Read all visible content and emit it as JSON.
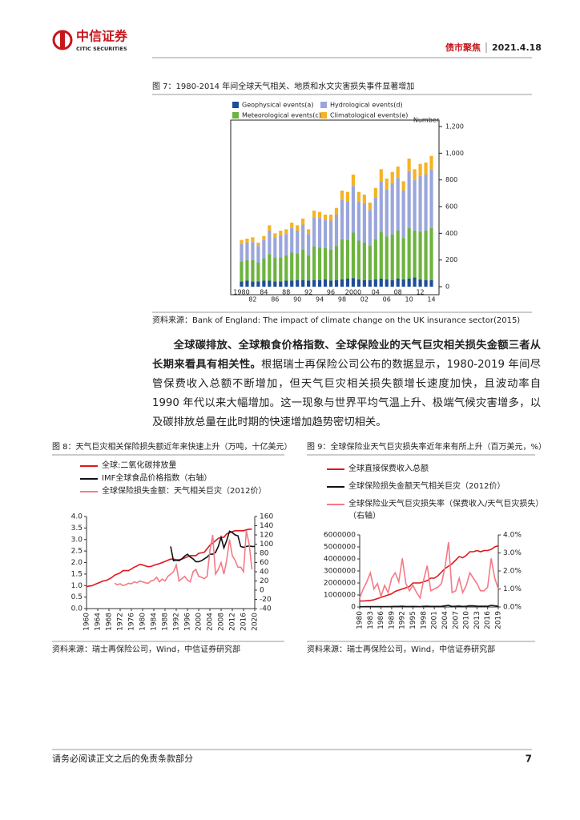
{
  "header": {
    "company": "中信证券",
    "company_en": "CITIC SECURITIES",
    "section": "债市聚焦",
    "date": "2021.4.18"
  },
  "body": {
    "lead": "全球碳排放、全球粮食价格指数、全球保险业的天气巨灾相关损失金额三者从长期来看具有相关性。",
    "text": "根据瑞士再保险公司公布的数据显示，1980-2019 年间尽管保费收入总额不断增加，但天气巨灾相关损失额增长速度加快，且波动率自 1990 年代以来大幅增加。这一现象与世界平均气温上升、极端气候灾害增多，以及碳排放总量在此时期的快速增加趋势密切相关。"
  },
  "footer": {
    "disclaimer": "请务必阅读正文之后的免责条款部分",
    "page": "7"
  },
  "chart_data": [
    {
      "type": "bar",
      "stacked": true,
      "title": "图 7：1980-2014 年间全球天气相关、地质和水文灾害损失事件显著增加",
      "source": "资料来源：Bank of England: The impact of climate change on the UK insurance sector(2015)",
      "ylabel": "Number",
      "categories": [
        "1980",
        null,
        "82",
        null,
        "84",
        null,
        "86",
        null,
        "88",
        null,
        "90",
        null,
        "92",
        null,
        "94",
        null,
        "96",
        null,
        "98",
        null,
        "2000",
        null,
        "02",
        null,
        "04",
        null,
        "06",
        null,
        "08",
        null,
        "10",
        null,
        "12",
        null,
        "14"
      ],
      "ylim": [
        0,
        1200
      ],
      "yticks": [
        0,
        200,
        400,
        600,
        800,
        {
          "value": 1000,
          "label": "1,000"
        },
        {
          "value": 1200,
          "label": "1,200"
        }
      ],
      "series": [
        {
          "name": "Geophysical events(a)",
          "color": "#1f4e96",
          "values": [
            40,
            45,
            40,
            40,
            45,
            45,
            40,
            40,
            45,
            45,
            50,
            50,
            45,
            50,
            50,
            55,
            45,
            50,
            55,
            60,
            65,
            55,
            50,
            50,
            55,
            60,
            55,
            50,
            60,
            55,
            60,
            70,
            55,
            50,
            50
          ]
        },
        {
          "name": "Meteorological events(c)",
          "color": "#6db33f",
          "values": [
            150,
            155,
            160,
            140,
            165,
            200,
            180,
            180,
            190,
            210,
            200,
            230,
            190,
            250,
            245,
            235,
            235,
            255,
            300,
            290,
            340,
            290,
            280,
            260,
            300,
            350,
            320,
            340,
            360,
            310,
            380,
            350,
            360,
            370,
            390
          ]
        },
        {
          "name": "Hydrological events(d)",
          "color": "#9aa6db",
          "values": [
            130,
            130,
            135,
            125,
            140,
            175,
            150,
            165,
            160,
            185,
            170,
            185,
            160,
            220,
            220,
            210,
            215,
            235,
            295,
            290,
            350,
            295,
            295,
            265,
            315,
            380,
            355,
            385,
            395,
            355,
            425,
            380,
            415,
            420,
            440
          ]
        },
        {
          "name": "Climatological events(e)",
          "color": "#f5b324",
          "values": [
            30,
            30,
            35,
            25,
            30,
            40,
            30,
            35,
            35,
            40,
            40,
            45,
            35,
            50,
            45,
            40,
            45,
            50,
            70,
            70,
            85,
            70,
            65,
            55,
            70,
            90,
            80,
            85,
            85,
            70,
            95,
            80,
            90,
            90,
            100
          ]
        }
      ]
    },
    {
      "type": "line",
      "title": "图 8：天气巨灾相关保险损失额近年来快速上升（万吨，十亿美元）",
      "source": "资料来源：瑞士再保险公司，Wind，中信证券研究部",
      "x": [
        1960,
        1961,
        1962,
        1963,
        1964,
        1965,
        1966,
        1967,
        1968,
        1969,
        1970,
        1971,
        1972,
        1973,
        1974,
        1975,
        1976,
        1977,
        1978,
        1979,
        1980,
        1981,
        1982,
        1983,
        1984,
        1985,
        1986,
        1987,
        1988,
        1989,
        1990,
        1991,
        1992,
        1993,
        1994,
        1995,
        1996,
        1997,
        1998,
        1999,
        2000,
        2001,
        2002,
        2003,
        2004,
        2005,
        2006,
        2007,
        2008,
        2009,
        2010,
        2011,
        2012,
        2013,
        2014,
        2015,
        2016,
        2017,
        2018,
        2019,
        2020
      ],
      "xlim": [
        1960,
        2020
      ],
      "xticks": [
        1960,
        1964,
        1968,
        1972,
        1976,
        1980,
        1984,
        1988,
        1992,
        1996,
        2000,
        2004,
        2008,
        2012,
        2016,
        2020
      ],
      "ylim": [
        0,
        4
      ],
      "yticks": [
        {
          "value": 0,
          "label": "0.0"
        },
        0.5,
        {
          "value": 1,
          "label": "1.0"
        },
        1.5,
        {
          "value": 2,
          "label": "2.0"
        },
        2.5,
        {
          "value": 3,
          "label": "3.0"
        },
        3.5,
        {
          "value": 4,
          "label": "4.0"
        }
      ],
      "y2lim": [
        -40,
        160
      ],
      "y2ticks": [
        -40,
        -20,
        0,
        20,
        40,
        60,
        80,
        100,
        120,
        140,
        160
      ],
      "series": [
        {
          "name": "全球:二氧化碳排放量",
          "color": "#e0161b",
          "values": [
            0.95,
            0.98,
            1.0,
            1.05,
            1.1,
            1.15,
            1.2,
            1.22,
            1.28,
            1.35,
            1.45,
            1.5,
            1.55,
            1.65,
            1.65,
            1.65,
            1.72,
            1.8,
            1.85,
            1.92,
            1.9,
            1.85,
            1.82,
            1.83,
            1.88,
            1.92,
            1.95,
            2.0,
            2.05,
            2.1,
            2.15,
            2.15,
            2.12,
            2.12,
            2.15,
            2.2,
            2.25,
            2.3,
            2.3,
            2.3,
            2.4,
            2.42,
            2.45,
            2.6,
            2.75,
            2.85,
            2.95,
            3.05,
            3.1,
            3.1,
            3.25,
            3.3,
            3.35,
            3.38,
            3.38,
            3.38,
            3.38,
            3.42,
            3.45,
            3.45,
            null
          ]
        },
        {
          "name": "IMF全球食品价格指数（右轴）",
          "color": "#111111",
          "axis": "y2",
          "values": [
            null,
            null,
            null,
            null,
            null,
            null,
            null,
            null,
            null,
            null,
            null,
            null,
            null,
            null,
            null,
            null,
            null,
            null,
            null,
            null,
            null,
            null,
            null,
            null,
            null,
            null,
            null,
            null,
            null,
            null,
            95,
            64,
            65,
            64,
            68,
            74,
            78,
            72,
            68,
            62,
            62,
            64,
            68,
            72,
            78,
            78,
            82,
            95,
            115,
            92,
            108,
            128,
            125,
            120,
            118,
            95,
            93,
            95,
            96,
            95,
            95
          ]
        },
        {
          "name": "全球保险损失金额：天气相关巨灾（2012价）",
          "color": "#f47a86",
          "axis": "y2",
          "values": [
            null,
            null,
            null,
            null,
            null,
            null,
            null,
            null,
            null,
            null,
            15,
            12,
            14,
            10,
            12,
            15,
            14,
            18,
            16,
            20,
            18,
            16,
            15,
            20,
            22,
            28,
            18,
            24,
            20,
            30,
            35,
            40,
            55,
            20,
            25,
            30,
            22,
            18,
            40,
            45,
            30,
            28,
            25,
            30,
            85,
            120,
            35,
            45,
            60,
            35,
            65,
            110,
            75,
            65,
            50,
            50,
            40,
            130,
            100,
            45,
            null
          ]
        }
      ]
    },
    {
      "type": "line",
      "title": "图 9：全球保险业天气巨灾损失率近年来有所上升（百万美元，%）",
      "source": "资料来源：瑞士再保险公司，Wind，中信证券研究部",
      "x": [
        1980,
        1981,
        1982,
        1983,
        1984,
        1985,
        1986,
        1987,
        1988,
        1989,
        1990,
        1991,
        1992,
        1993,
        1994,
        1995,
        1996,
        1997,
        1998,
        1999,
        2000,
        2001,
        2002,
        2003,
        2004,
        2005,
        2006,
        2007,
        2008,
        2009,
        2010,
        2011,
        2012,
        2013,
        2014,
        2015,
        2016,
        2017,
        2018,
        2019
      ],
      "xlim": [
        1980,
        2019
      ],
      "xticks": [
        1980,
        1983,
        1986,
        1989,
        1992,
        1995,
        1998,
        2001,
        2004,
        2007,
        2010,
        2013,
        2016,
        2019
      ],
      "ylim": [
        0,
        6000000
      ],
      "yticks": [
        0,
        1000000,
        2000000,
        3000000,
        4000000,
        5000000,
        6000000
      ],
      "y2lim": [
        0,
        4
      ],
      "y2ticks": [
        {
          "value": 0,
          "label": "0.0%"
        },
        {
          "value": 1,
          "label": "1.0%"
        },
        {
          "value": 2,
          "label": "2.0%"
        },
        {
          "value": 3,
          "label": "3.0%"
        },
        {
          "value": 4,
          "label": "4.0%"
        }
      ],
      "series": [
        {
          "name": "全球直接保费收入总额",
          "color": "#e0161b",
          "values": [
            500000,
            500000,
            520000,
            550000,
            600000,
            700000,
            800000,
            900000,
            1000000,
            1100000,
            1300000,
            1400000,
            1500000,
            1600000,
            1700000,
            2000000,
            2000000,
            2000000,
            2100000,
            2200000,
            2400000,
            2400000,
            2600000,
            2900000,
            3200000,
            3400000,
            3600000,
            3900000,
            4200000,
            4100000,
            4300000,
            4600000,
            4600000,
            4700000,
            4600000,
            4700000,
            4700000,
            4800000,
            5000000,
            5100000
          ]
        },
        {
          "name": "全球保险损失金额天气相关巨灾（2012价）",
          "color": "#111111",
          "values": [
            20000,
            20000,
            25000,
            30000,
            25000,
            30000,
            25000,
            35000,
            30000,
            40000,
            50000,
            45000,
            60000,
            40000,
            40000,
            45000,
            40000,
            35000,
            55000,
            60000,
            45000,
            45000,
            50000,
            55000,
            90000,
            130000,
            50000,
            60000,
            80000,
            50000,
            70000,
            110000,
            90000,
            75000,
            65000,
            65000,
            60000,
            140000,
            100000,
            60000
          ]
        },
        {
          "name": "全球保险业天气巨灾损失率（保费收入/天气巨灾损失）（右轴）",
          "color": "#f47a86",
          "axis": "y2",
          "values": [
            0.5,
            1.0,
            1.4,
            1.9,
            1.0,
            1.3,
            0.6,
            1.2,
            0.8,
            1.6,
            1.9,
            1.4,
            2.7,
            1.3,
            0.9,
            1.2,
            0.8,
            0.5,
            1.5,
            2.3,
            0.9,
            1.0,
            1.1,
            1.3,
            2.2,
            3.6,
            0.8,
            0.9,
            1.6,
            0.8,
            1.2,
            1.9,
            1.6,
            1.3,
            0.9,
            0.9,
            1.1,
            2.7,
            1.6,
            1.0
          ]
        }
      ]
    }
  ]
}
